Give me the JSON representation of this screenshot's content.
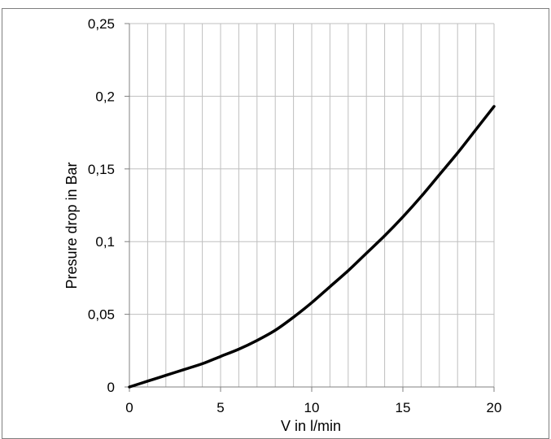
{
  "chart_data": {
    "type": "line",
    "title": "",
    "xlabel": "V in l/min",
    "ylabel": "Presure drop in Bar",
    "xlim": [
      0,
      20
    ],
    "ylim": [
      0,
      0.25
    ],
    "x_ticks": [
      0,
      5,
      10,
      15,
      20
    ],
    "x_tick_labels": [
      "0",
      "5",
      "10",
      "15",
      "20"
    ],
    "y_ticks": [
      0,
      0.05,
      0.1,
      0.15,
      0.2,
      0.25
    ],
    "y_tick_labels": [
      "0",
      "0,05",
      "0,1",
      "0,15",
      "0,2",
      "0,25"
    ],
    "x_minor_step": 1,
    "y_minor_step": 0.05,
    "grid": true,
    "legend": "none",
    "line_color": "#000000",
    "grid_color": "#bfbfbf",
    "series": [
      {
        "x": [
          0,
          1,
          2,
          3,
          4,
          5,
          6,
          7,
          8,
          9,
          10,
          11,
          12,
          13,
          14,
          15,
          16,
          17,
          18,
          19,
          20
        ],
        "y": [
          0,
          0.004,
          0.008,
          0.012,
          0.016,
          0.021,
          0.026,
          0.032,
          0.039,
          0.048,
          0.058,
          0.069,
          0.08,
          0.092,
          0.104,
          0.117,
          0.131,
          0.146,
          0.161,
          0.177,
          0.193
        ]
      }
    ]
  }
}
